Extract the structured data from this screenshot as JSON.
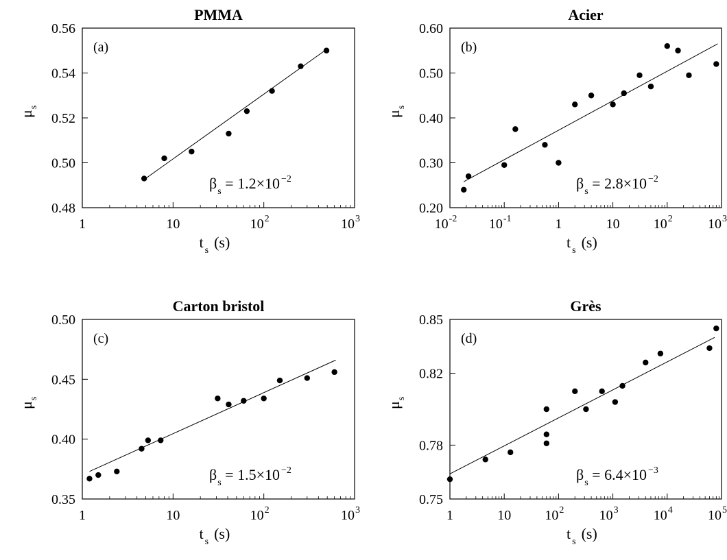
{
  "chart_data": [
    {
      "type": "scatter",
      "title": "PMMA",
      "panel_label": "(a)",
      "xlabel": {
        "main": "t",
        "sub": "s",
        "unit": "(s)"
      },
      "ylabel": {
        "main": "μ",
        "sub": "s"
      },
      "x_scale": "log",
      "xlim": [
        1,
        1000
      ],
      "ylim": [
        0.48,
        0.56
      ],
      "xticks": [
        {
          "v": 1,
          "base": "1",
          "exp": ""
        },
        {
          "v": 10,
          "base": "10",
          "exp": ""
        },
        {
          "v": 100,
          "base": "10",
          "exp": "2"
        },
        {
          "v": 1000,
          "base": "10",
          "exp": "3"
        }
      ],
      "yticks": [
        {
          "v": 0.48,
          "label": "0.48"
        },
        {
          "v": 0.5,
          "label": "0.50"
        },
        {
          "v": 0.52,
          "label": "0.52"
        },
        {
          "v": 0.54,
          "label": "0.54"
        },
        {
          "v": 0.56,
          "label": "0.56"
        }
      ],
      "points": [
        [
          4.8,
          0.493
        ],
        [
          8,
          0.502
        ],
        [
          16,
          0.505
        ],
        [
          41,
          0.513
        ],
        [
          65,
          0.523
        ],
        [
          123,
          0.532
        ],
        [
          255,
          0.543
        ],
        [
          490,
          0.55
        ]
      ],
      "fit": [
        [
          4.6,
          0.492
        ],
        [
          510,
          0.551
        ]
      ],
      "annotation": {
        "lead": "β",
        "sub": "s",
        "text": " = 1.2×10",
        "exp": "−2"
      },
      "grid": false,
      "legend": "none"
    },
    {
      "type": "scatter",
      "title": "Acier",
      "panel_label": "(b)",
      "xlabel": {
        "main": "t",
        "sub": "s",
        "unit": "(s)"
      },
      "ylabel": {
        "main": "μ",
        "sub": "s"
      },
      "x_scale": "log",
      "xlim": [
        0.01,
        1000
      ],
      "ylim": [
        0.2,
        0.6
      ],
      "xticks": [
        {
          "v": 0.01,
          "base": "10",
          "exp": "-2"
        },
        {
          "v": 0.1,
          "base": "10",
          "exp": "-1"
        },
        {
          "v": 1,
          "base": "1",
          "exp": ""
        },
        {
          "v": 10,
          "base": "10",
          "exp": ""
        },
        {
          "v": 100,
          "base": "10",
          "exp": "2"
        },
        {
          "v": 1000,
          "base": "10",
          "exp": "3"
        }
      ],
      "yticks": [
        {
          "v": 0.2,
          "label": "0.20"
        },
        {
          "v": 0.3,
          "label": "0.30"
        },
        {
          "v": 0.4,
          "label": "0.40"
        },
        {
          "v": 0.5,
          "label": "0.50"
        },
        {
          "v": 0.6,
          "label": "0.60"
        }
      ],
      "points": [
        [
          0.018,
          0.24
        ],
        [
          0.022,
          0.27
        ],
        [
          0.1,
          0.295
        ],
        [
          0.16,
          0.375
        ],
        [
          0.56,
          0.34
        ],
        [
          1,
          0.3
        ],
        [
          2,
          0.43
        ],
        [
          4,
          0.45
        ],
        [
          10,
          0.43
        ],
        [
          16,
          0.455
        ],
        [
          31,
          0.495
        ],
        [
          50,
          0.47
        ],
        [
          100,
          0.56
        ],
        [
          158,
          0.55
        ],
        [
          251,
          0.495
        ],
        [
          800,
          0.52
        ]
      ],
      "fit": [
        [
          0.018,
          0.258
        ],
        [
          850,
          0.565
        ]
      ],
      "annotation": {
        "lead": "β",
        "sub": "s",
        "text": " = 2.8×10",
        "exp": "−2"
      },
      "grid": false,
      "legend": "none"
    },
    {
      "type": "scatter",
      "title": "Carton  bristol",
      "panel_label": "(c)",
      "xlabel": {
        "main": "t",
        "sub": "s",
        "unit": "(s)"
      },
      "ylabel": {
        "main": "μ",
        "sub": "s"
      },
      "x_scale": "log",
      "xlim": [
        1,
        1000
      ],
      "ylim": [
        0.35,
        0.5
      ],
      "xticks": [
        {
          "v": 1,
          "base": "1",
          "exp": ""
        },
        {
          "v": 10,
          "base": "10",
          "exp": ""
        },
        {
          "v": 100,
          "base": "10",
          "exp": "2"
        },
        {
          "v": 1000,
          "base": "10",
          "exp": "3"
        }
      ],
      "yticks": [
        {
          "v": 0.35,
          "label": "0.35"
        },
        {
          "v": 0.4,
          "label": "0.40"
        },
        {
          "v": 0.45,
          "label": "0.45"
        },
        {
          "v": 0.5,
          "label": "0.50"
        }
      ],
      "points": [
        [
          1.2,
          0.367
        ],
        [
          1.5,
          0.37
        ],
        [
          2.4,
          0.373
        ],
        [
          4.5,
          0.392
        ],
        [
          5.3,
          0.399
        ],
        [
          7.3,
          0.399
        ],
        [
          31,
          0.434
        ],
        [
          41,
          0.429
        ],
        [
          60,
          0.432
        ],
        [
          100,
          0.434
        ],
        [
          150,
          0.449
        ],
        [
          300,
          0.451
        ],
        [
          600,
          0.456
        ]
      ],
      "fit": [
        [
          1.2,
          0.373
        ],
        [
          620,
          0.466
        ]
      ],
      "annotation": {
        "lead": "β",
        "sub": "s",
        "text": " = 1.5×10",
        "exp": "−2"
      },
      "grid": false,
      "legend": "none"
    },
    {
      "type": "scatter",
      "title": "Grès",
      "panel_label": "(d)",
      "xlabel": {
        "main": "t",
        "sub": "s",
        "unit": "(s)"
      },
      "ylabel": {
        "main": "μ",
        "sub": "s"
      },
      "x_scale": "log",
      "xlim": [
        1,
        100000
      ],
      "ylim": [
        0.75,
        0.85
      ],
      "xticks": [
        {
          "v": 1,
          "base": "1",
          "exp": ""
        },
        {
          "v": 10,
          "base": "10",
          "exp": ""
        },
        {
          "v": 100,
          "base": "10",
          "exp": "2"
        },
        {
          "v": 1000,
          "base": "10",
          "exp": "3"
        },
        {
          "v": 10000,
          "base": "10",
          "exp": "4"
        },
        {
          "v": 100000,
          "base": "10",
          "exp": "5"
        }
      ],
      "yticks": [
        {
          "v": 0.75,
          "label": "0.75"
        },
        {
          "v": 0.78,
          "label": "0.78"
        },
        {
          "v": 0.82,
          "label": "0.82"
        },
        {
          "v": 0.85,
          "label": "0.85"
        }
      ],
      "points": [
        [
          1,
          0.761
        ],
        [
          4.5,
          0.772
        ],
        [
          13,
          0.776
        ],
        [
          60,
          0.781
        ],
        [
          60,
          0.786
        ],
        [
          60,
          0.8
        ],
        [
          200,
          0.81
        ],
        [
          320,
          0.8
        ],
        [
          630,
          0.81
        ],
        [
          1100,
          0.804
        ],
        [
          1500,
          0.813
        ],
        [
          4000,
          0.826
        ],
        [
          7500,
          0.831
        ],
        [
          60000,
          0.834
        ],
        [
          80000,
          0.845
        ]
      ],
      "fit": [
        [
          1,
          0.764
        ],
        [
          75000,
          0.84
        ]
      ],
      "annotation": {
        "lead": "β",
        "sub": "s",
        "text": " = 6.4×10",
        "exp": "−3"
      },
      "grid": false,
      "legend": "none"
    }
  ]
}
